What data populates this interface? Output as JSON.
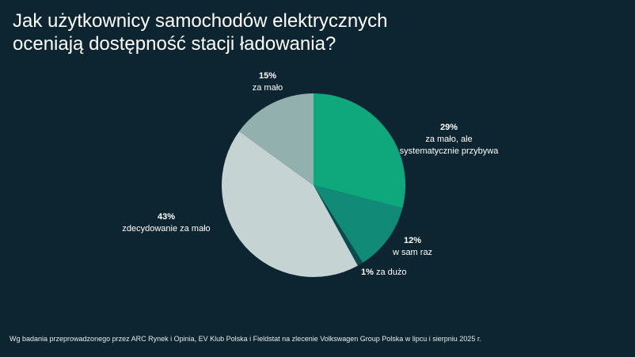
{
  "title": {
    "line1": "Jak użytkownicy samochodów elektrycznych",
    "line2": "oceniają dostępność stacji ładowania?"
  },
  "footnote": "Wg badania przeprowadzonego przez ARC Rynek i Opinia, EV Klub Polska i Fieldstat na zlecenie Volkswagen Group Polska w lipcu i sierpniu 2025 r.",
  "colors": {
    "background": "#0c2530",
    "slice_29": "#0fa77c",
    "slice_12": "#128a78",
    "slice_1": "#0d4a4d",
    "slice_43": "#c5d3d3",
    "slice_15": "#92b1ae"
  },
  "chart_data": {
    "type": "pie",
    "title": "Jak użytkownicy samochodów elektrycznych oceniają dostępność stacji ładowania?",
    "start_angle_deg": 0,
    "direction": "clockwise",
    "slices": [
      {
        "pct_label": "29%",
        "value": 29,
        "label": "za mało, ale systematycznie przybywa",
        "label_line1": "za mało, ale",
        "label_line2": "systematycznie przybywa",
        "color": "#0fa77c"
      },
      {
        "pct_label": "12%",
        "value": 12,
        "label": "w sam raz",
        "color": "#128a78"
      },
      {
        "pct_label": "1%",
        "value": 1,
        "label": "za dużo",
        "color": "#0d4a4d"
      },
      {
        "pct_label": "43%",
        "value": 43,
        "label": "zdecydowanie za mało",
        "color": "#c5d3d3"
      },
      {
        "pct_label": "15%",
        "value": 15,
        "label": "za mało",
        "color": "#92b1ae"
      }
    ]
  }
}
